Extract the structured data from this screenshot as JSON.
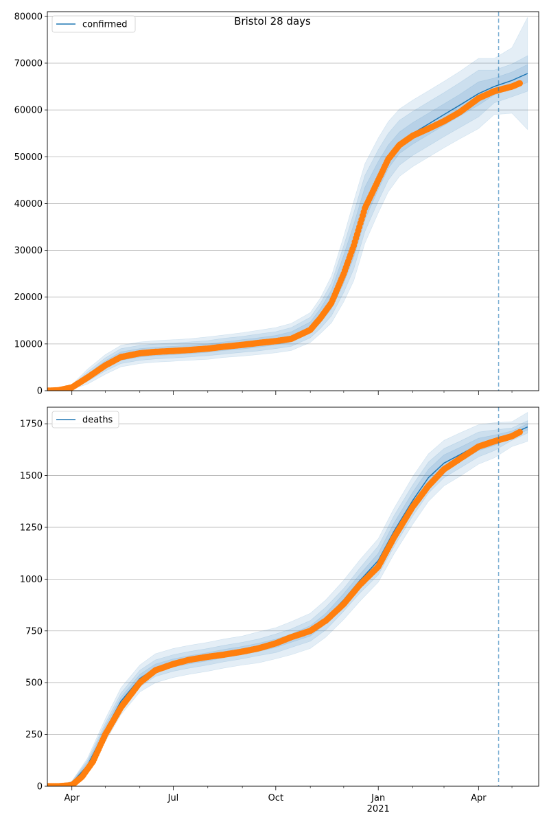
{
  "figure": {
    "title": "Bristol 28 days"
  },
  "colors": {
    "model_line": "#1f77b4",
    "band": "#1f77b4",
    "observed": "#ff7f0e",
    "grid": "#b0b0b0",
    "marker_line": "#1f77b4"
  },
  "chart_data": [
    {
      "type": "line",
      "name": "confirmed-panel",
      "legend": {
        "label": "confirmed",
        "placement": "top-left"
      },
      "ylim": [
        0,
        81000
      ],
      "yticks": [
        0,
        10000,
        20000,
        30000,
        40000,
        50000,
        60000,
        70000,
        80000
      ],
      "ytick_labels": [
        "0",
        "10000",
        "20000",
        "30000",
        "40000",
        "50000",
        "60000",
        "70000",
        "80000"
      ],
      "grid": "horizontal",
      "x_tick_labels_visible": false,
      "model": {
        "x": [
          "2020-03-10",
          "2020-03-20",
          "2020-04-01",
          "2020-04-15",
          "2020-05-01",
          "2020-05-15",
          "2020-06-01",
          "2020-06-15",
          "2020-07-01",
          "2020-07-15",
          "2020-08-01",
          "2020-08-15",
          "2020-09-01",
          "2020-09-15",
          "2020-10-01",
          "2020-10-15",
          "2020-11-01",
          "2020-11-10",
          "2020-11-20",
          "2020-12-01",
          "2020-12-10",
          "2020-12-20",
          "2021-01-01",
          "2021-01-10",
          "2021-01-20",
          "2021-02-01",
          "2021-02-15",
          "2021-03-01",
          "2021-03-15",
          "2021-04-01",
          "2021-04-15",
          "2021-05-01",
          "2021-05-15"
        ],
        "y": [
          0,
          100,
          800,
          3000,
          5600,
          7400,
          8100,
          8400,
          8600,
          8800,
          9100,
          9500,
          9900,
          10300,
          10800,
          11500,
          13500,
          16000,
          19500,
          26000,
          32000,
          40000,
          46000,
          50000,
          53000,
          55000,
          57000,
          59000,
          61000,
          63500,
          65000,
          66300,
          67800
        ],
        "band_inner": [
          0,
          0,
          150,
          500,
          800,
          900,
          900,
          900,
          900,
          900,
          900,
          900,
          1000,
          1000,
          1000,
          1100,
          1200,
          1500,
          2000,
          3000,
          3500,
          3500,
          3000,
          2500,
          2300,
          2300,
          2300,
          2300,
          2300,
          2500,
          1800,
          1800,
          1900
        ],
        "band_mid": [
          0,
          0,
          300,
          1000,
          1400,
          1600,
          1600,
          1600,
          1600,
          1600,
          1600,
          1700,
          1700,
          1800,
          1800,
          2000,
          2200,
          2700,
          3500,
          5000,
          6000,
          6000,
          5500,
          5000,
          4800,
          4700,
          4700,
          4700,
          4800,
          5000,
          3500,
          3500,
          3800
        ],
        "band_outer": [
          0,
          0,
          500,
          1600,
          2100,
          2300,
          2300,
          2300,
          2300,
          2300,
          2400,
          2400,
          2500,
          2600,
          2700,
          2900,
          3200,
          3800,
          5000,
          7000,
          8500,
          8500,
          8000,
          7500,
          7200,
          7100,
          7100,
          7100,
          7200,
          7500,
          6000,
          7000,
          12000
        ]
      },
      "observed": {
        "x": [
          "2020-03-10",
          "2020-03-20",
          "2020-04-01",
          "2020-04-15",
          "2020-05-01",
          "2020-05-15",
          "2020-06-01",
          "2020-06-15",
          "2020-07-01",
          "2020-07-15",
          "2020-08-01",
          "2020-08-15",
          "2020-09-01",
          "2020-09-15",
          "2020-10-01",
          "2020-10-15",
          "2020-11-01",
          "2020-11-10",
          "2020-11-20",
          "2020-12-01",
          "2020-12-10",
          "2020-12-20",
          "2021-01-01",
          "2021-01-10",
          "2021-01-20",
          "2021-02-01",
          "2021-02-15",
          "2021-03-01",
          "2021-03-15",
          "2021-04-01",
          "2021-04-15",
          "2021-05-01",
          "2021-05-08"
        ],
        "y": [
          0,
          100,
          700,
          2800,
          5400,
          7200,
          8000,
          8300,
          8500,
          8700,
          9000,
          9400,
          9800,
          10200,
          10600,
          11100,
          13000,
          15500,
          18800,
          25000,
          31000,
          39000,
          45000,
          49500,
          52500,
          54500,
          56000,
          57600,
          59500,
          62500,
          64000,
          65000,
          65700
        ]
      }
    },
    {
      "type": "line",
      "name": "deaths-panel",
      "legend": {
        "label": "deaths",
        "placement": "top-left"
      },
      "ylim": [
        0,
        1830
      ],
      "yticks": [
        0,
        250,
        500,
        750,
        1000,
        1250,
        1500,
        1750
      ],
      "ytick_labels": [
        "0",
        "250",
        "500",
        "750",
        "1000",
        "1250",
        "1500",
        "1750"
      ],
      "grid": "horizontal",
      "x_tick_labels_visible": true,
      "model": {
        "x": [
          "2020-03-10",
          "2020-03-20",
          "2020-04-01",
          "2020-04-15",
          "2020-05-01",
          "2020-05-15",
          "2020-06-01",
          "2020-06-15",
          "2020-07-01",
          "2020-07-15",
          "2020-08-01",
          "2020-08-15",
          "2020-09-01",
          "2020-09-15",
          "2020-10-01",
          "2020-10-15",
          "2020-11-01",
          "2020-11-15",
          "2020-12-01",
          "2020-12-15",
          "2021-01-01",
          "2021-01-15",
          "2021-02-01",
          "2021-02-15",
          "2021-03-01",
          "2021-03-15",
          "2021-04-01",
          "2021-04-15",
          "2021-05-01",
          "2021-05-15"
        ],
        "y": [
          0,
          2,
          15,
          100,
          270,
          410,
          520,
          570,
          595,
          610,
          625,
          640,
          655,
          670,
          690,
          715,
          750,
          810,
          900,
          990,
          1090,
          1230,
          1380,
          1490,
          1560,
          1600,
          1650,
          1670,
          1700,
          1735
        ],
        "band_inner": [
          0,
          0,
          5,
          15,
          20,
          20,
          20,
          20,
          20,
          20,
          20,
          20,
          20,
          20,
          20,
          20,
          25,
          25,
          30,
          30,
          35,
          40,
          40,
          40,
          40,
          35,
          30,
          25,
          15,
          15
        ],
        "band_mid": [
          0,
          0,
          8,
          25,
          35,
          40,
          40,
          40,
          40,
          40,
          40,
          40,
          40,
          40,
          45,
          45,
          50,
          55,
          55,
          60,
          70,
          75,
          75,
          75,
          70,
          65,
          60,
          50,
          30,
          30
        ],
        "band_outer": [
          0,
          0,
          10,
          35,
          55,
          65,
          65,
          70,
          70,
          70,
          70,
          70,
          70,
          75,
          75,
          80,
          85,
          90,
          95,
          100,
          105,
          110,
          115,
          115,
          110,
          105,
          95,
          85,
          60,
          70
        ]
      },
      "observed": {
        "x": [
          "2020-03-10",
          "2020-03-20",
          "2020-04-01",
          "2020-04-10",
          "2020-04-20",
          "2020-05-01",
          "2020-05-15",
          "2020-06-01",
          "2020-06-15",
          "2020-07-01",
          "2020-07-15",
          "2020-08-01",
          "2020-08-15",
          "2020-09-01",
          "2020-09-15",
          "2020-10-01",
          "2020-10-15",
          "2020-11-01",
          "2020-11-15",
          "2020-12-01",
          "2020-12-15",
          "2021-01-01",
          "2021-01-15",
          "2021-02-01",
          "2021-02-15",
          "2021-03-01",
          "2021-03-15",
          "2021-04-01",
          "2021-04-15",
          "2021-05-01",
          "2021-05-08"
        ],
        "y": [
          0,
          0,
          5,
          45,
          120,
          250,
          380,
          500,
          560,
          590,
          610,
          625,
          635,
          650,
          665,
          690,
          720,
          750,
          800,
          880,
          970,
          1060,
          1200,
          1350,
          1450,
          1530,
          1580,
          1640,
          1665,
          1690,
          1710
        ]
      }
    }
  ],
  "x_axis": {
    "start": "2020-03-10",
    "end": "2021-05-25",
    "major_ticks": [
      {
        "date": "2020-04-01",
        "label": "Apr",
        "sublabel": ""
      },
      {
        "date": "2020-07-01",
        "label": "Jul",
        "sublabel": ""
      },
      {
        "date": "2020-10-01",
        "label": "Oct",
        "sublabel": ""
      },
      {
        "date": "2021-01-01",
        "label": "Jan",
        "sublabel": "2021"
      },
      {
        "date": "2021-04-01",
        "label": "Apr",
        "sublabel": ""
      }
    ],
    "minor_ticks": [
      "2020-05-01",
      "2020-06-01",
      "2020-08-01",
      "2020-09-01",
      "2020-11-01",
      "2020-12-01",
      "2021-02-01",
      "2021-03-01",
      "2021-05-01"
    ],
    "forecast_marker": "2021-04-19"
  }
}
